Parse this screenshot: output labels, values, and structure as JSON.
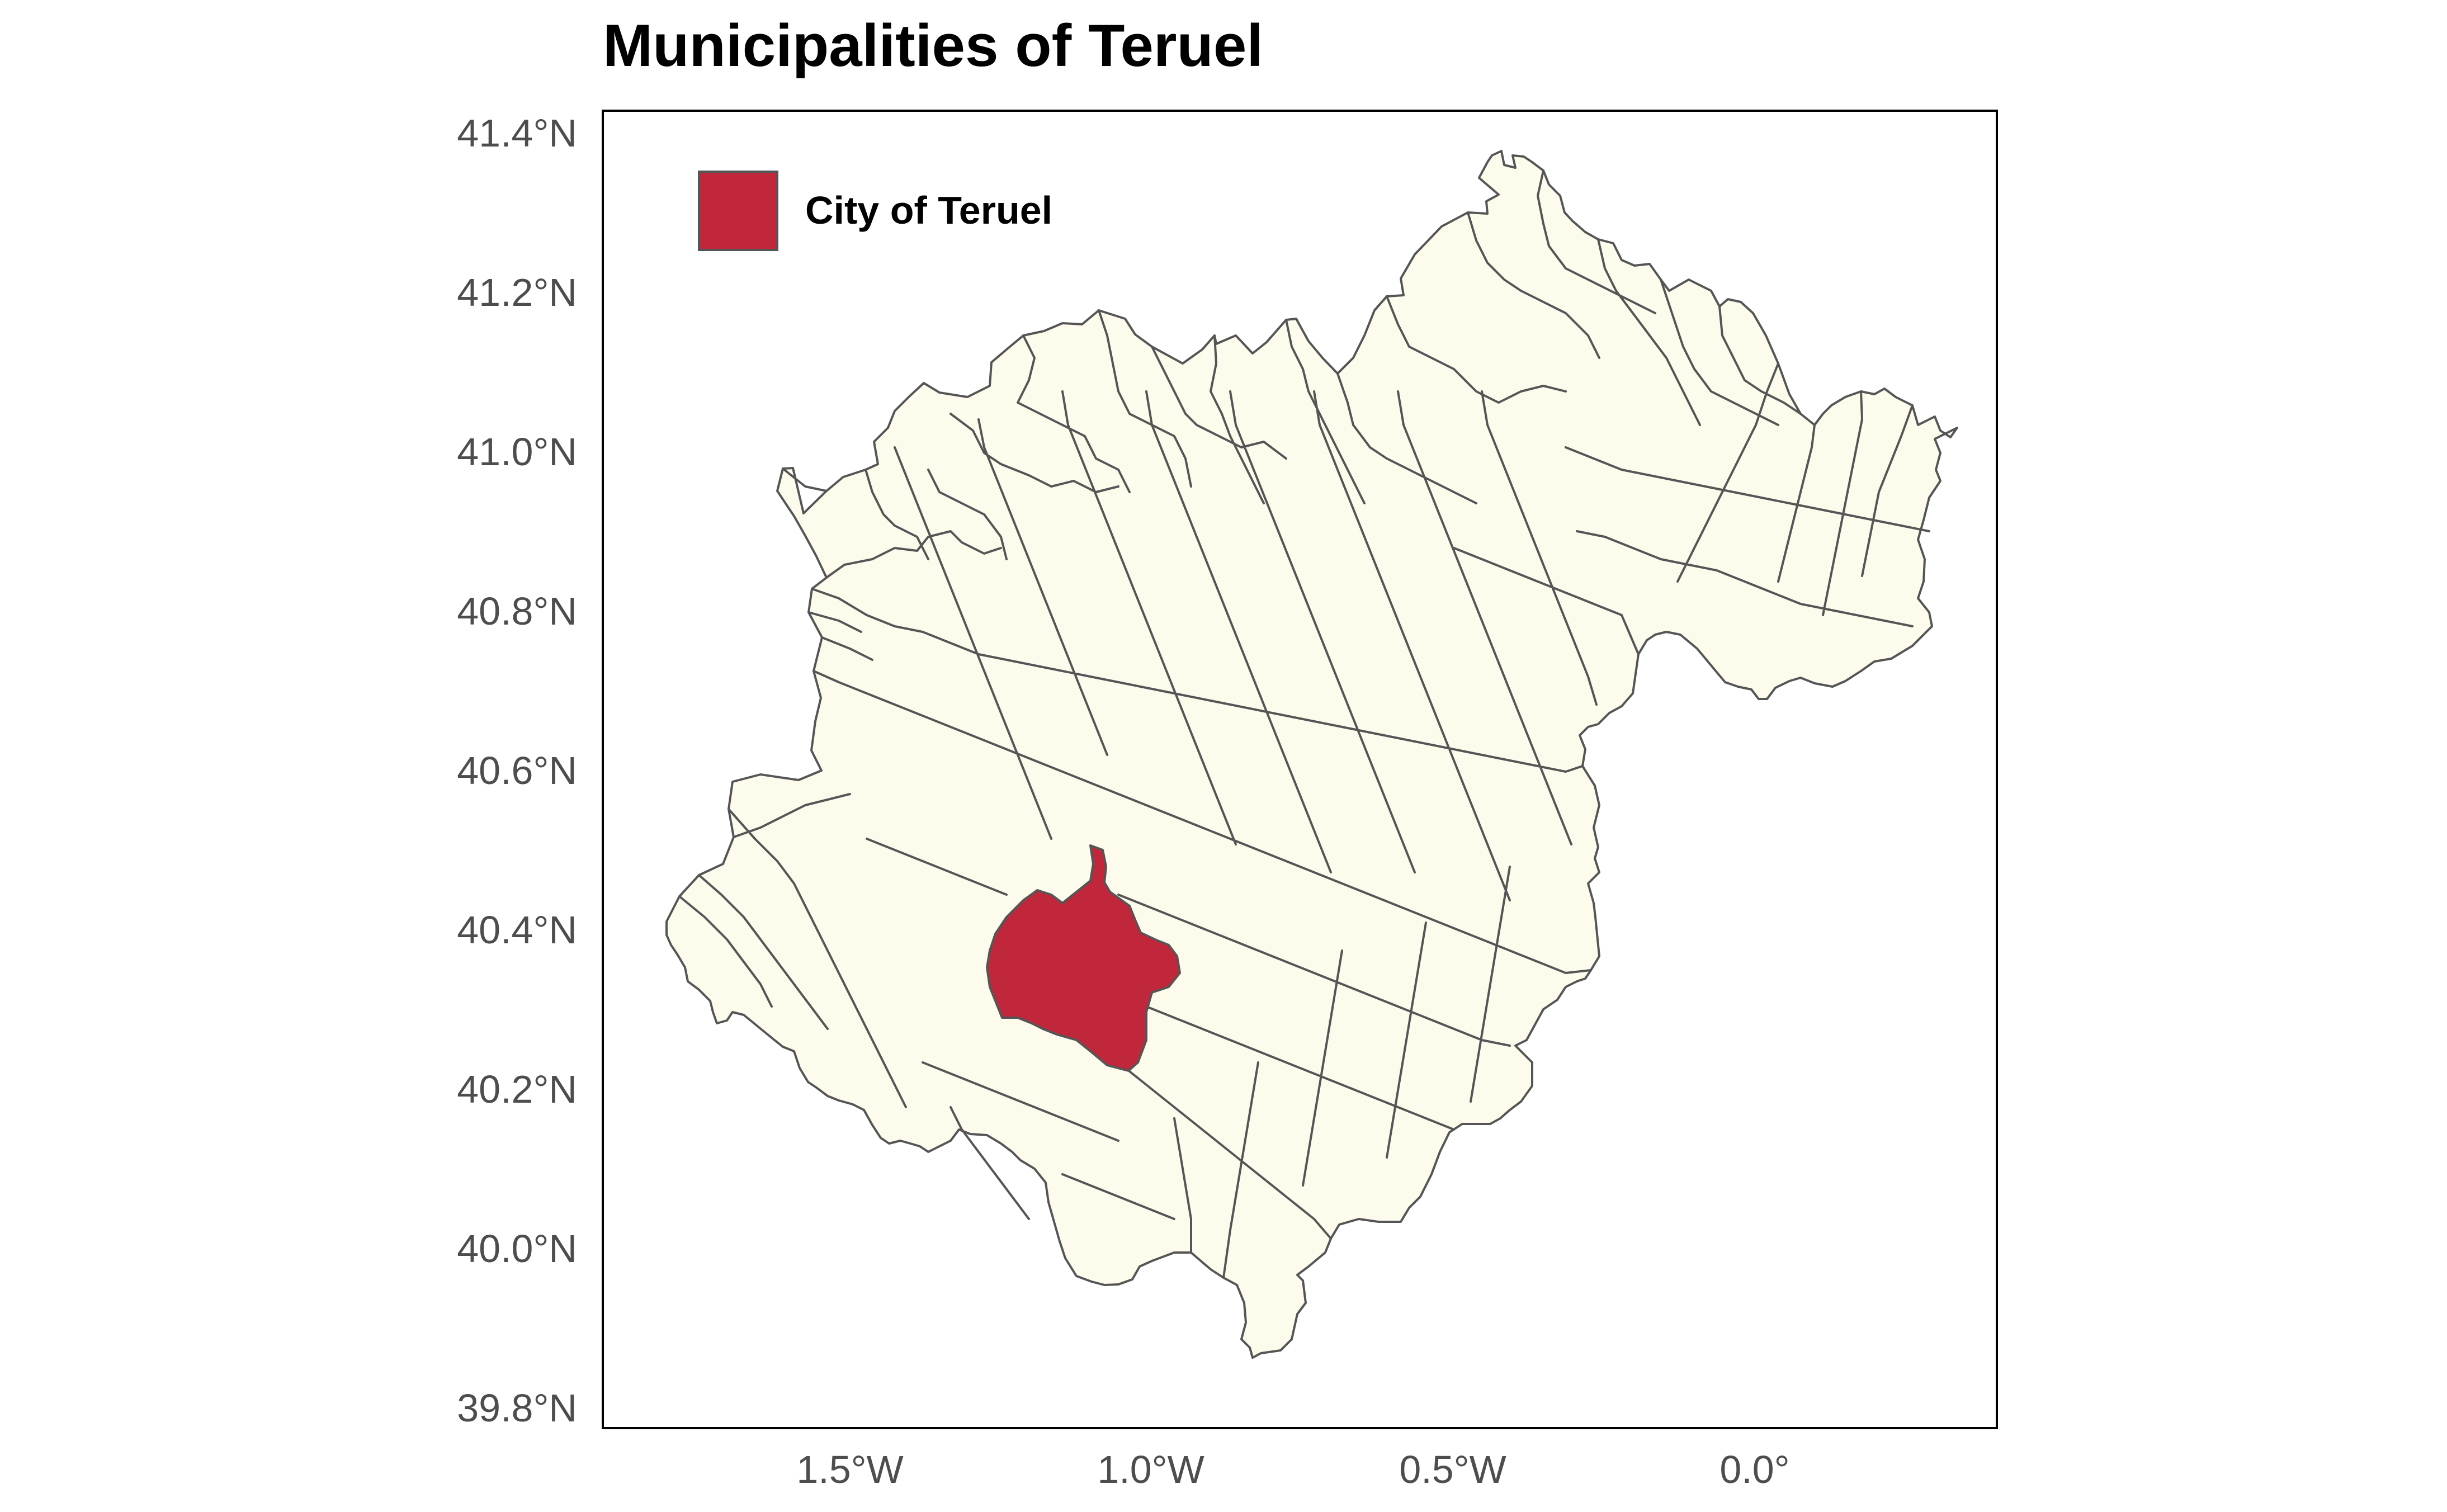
{
  "title": "Municipalities of Teruel",
  "colors": {
    "municipality_fill": "#fcfbec",
    "highlight_fill": "#c1273a",
    "border": "#555555",
    "panel_border": "#000000",
    "tick_text": "#4d4d4d"
  },
  "legend": {
    "position": "top-left inside panel",
    "label": "City of Teruel",
    "swatch_color": "#c1273a"
  },
  "axes": {
    "x_ticks": [
      "1.5°W",
      "1.0°W",
      "0.5°W",
      "0.0°"
    ],
    "y_ticks": [
      "41.4°N",
      "41.2°N",
      "41.0°N",
      "40.8°N",
      "40.6°N",
      "40.4°N",
      "40.2°N",
      "40.0°N",
      "39.8°N"
    ],
    "grid": false
  },
  "map": {
    "region": "Teruel",
    "highlighted_municipality": "City of Teruel"
  }
}
